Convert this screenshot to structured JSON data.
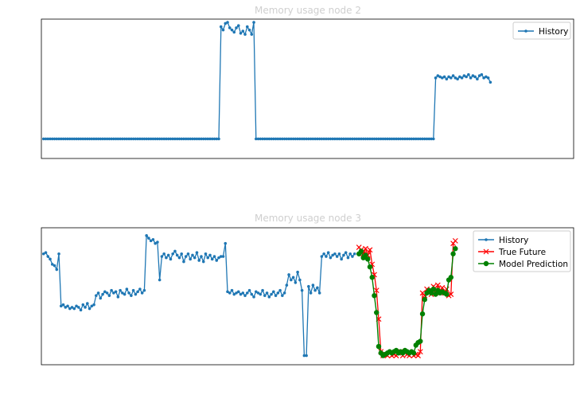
{
  "colors": {
    "history": "#1f77b4",
    "true_future": "#ff0000",
    "prediction": "#008000",
    "axes": "#000000",
    "faded_text": "#d6d6d6"
  },
  "chart_data": [
    {
      "type": "line",
      "title": "Memory usage node 2",
      "xlabel": "",
      "ylabel": "",
      "xlim": [
        -1,
        242
      ],
      "ylim": [
        -0.18,
        1.1
      ],
      "legend": {
        "placement": "top-right",
        "entries": [
          "History"
        ]
      },
      "grid": false,
      "series": [
        {
          "name": "History",
          "marker": "dot",
          "segments": [
            {
              "x_start": 0,
              "x_end": 80,
              "value": 0.0
            },
            {
              "x_start": 81,
              "x_end": 96,
              "values": [
                1.03,
                1.0,
                1.06,
                1.07,
                1.02,
                1.0,
                0.98,
                1.02,
                1.04,
                0.97,
                0.99,
                0.96,
                1.03,
                1.0,
                0.96,
                1.07
              ]
            },
            {
              "x_start": 97,
              "x_end": 178,
              "value": 0.0
            },
            {
              "x_start": 179,
              "x_end": 204,
              "values": [
                0.56,
                0.58,
                0.57,
                0.56,
                0.57,
                0.55,
                0.57,
                0.56,
                0.58,
                0.56,
                0.55,
                0.57,
                0.56,
                0.58,
                0.57,
                0.59,
                0.56,
                0.58,
                0.57,
                0.55,
                0.58,
                0.59,
                0.56,
                0.57,
                0.56,
                0.52
              ]
            }
          ]
        }
      ]
    },
    {
      "type": "line",
      "title": "Memory usage node 3",
      "xlabel": "",
      "ylabel": "",
      "xlim": [
        -1,
        242
      ],
      "ylim": [
        -0.05,
        1.0
      ],
      "legend": {
        "placement": "top-right",
        "entries": [
          "History",
          "True Future",
          "Model Prediction"
        ]
      },
      "grid": false,
      "series": [
        {
          "name": "History",
          "marker": "dot",
          "values": [
            0.8,
            0.81,
            0.78,
            0.76,
            0.72,
            0.71,
            0.68,
            0.8,
            0.4,
            0.41,
            0.39,
            0.4,
            0.38,
            0.39,
            0.38,
            0.4,
            0.39,
            0.37,
            0.41,
            0.39,
            0.42,
            0.38,
            0.4,
            0.41,
            0.48,
            0.5,
            0.46,
            0.49,
            0.51,
            0.5,
            0.48,
            0.52,
            0.5,
            0.51,
            0.47,
            0.52,
            0.5,
            0.49,
            0.53,
            0.5,
            0.48,
            0.52,
            0.49,
            0.51,
            0.53,
            0.5,
            0.52,
            0.94,
            0.92,
            0.9,
            0.91,
            0.88,
            0.89,
            0.6,
            0.78,
            0.8,
            0.77,
            0.79,
            0.76,
            0.8,
            0.82,
            0.79,
            0.77,
            0.8,
            0.74,
            0.78,
            0.8,
            0.76,
            0.79,
            0.77,
            0.81,
            0.75,
            0.78,
            0.74,
            0.8,
            0.77,
            0.79,
            0.76,
            0.78,
            0.75,
            0.77,
            0.78,
            0.78,
            0.88,
            0.51,
            0.5,
            0.52,
            0.49,
            0.5,
            0.51,
            0.49,
            0.5,
            0.48,
            0.5,
            0.52,
            0.49,
            0.47,
            0.51,
            0.5,
            0.49,
            0.52,
            0.48,
            0.5,
            0.47,
            0.49,
            0.51,
            0.48,
            0.5,
            0.52,
            0.48,
            0.5,
            0.56,
            0.64,
            0.6,
            0.62,
            0.58,
            0.66,
            0.6,
            0.52,
            0.02,
            0.02,
            0.55,
            0.5,
            0.56,
            0.52,
            0.54,
            0.5,
            0.78,
            0.8,
            0.78,
            0.81,
            0.77,
            0.79,
            0.8,
            0.78,
            0.8,
            0.76,
            0.79,
            0.81,
            0.77,
            0.8,
            0.78,
            0.8
          ]
        },
        {
          "name": "True Future",
          "marker": "x",
          "x_start": 144,
          "values": [
            0.85,
            0.83,
            0.8,
            0.84,
            0.79,
            0.83,
            0.72,
            0.64,
            0.52,
            0.3,
            0.05,
            0.02,
            0.03,
            0.02,
            0.04,
            0.02,
            0.03,
            0.02,
            0.04,
            0.05,
            0.02,
            0.04,
            0.03,
            0.02,
            0.04,
            0.02,
            0.03,
            0.02,
            0.05,
            0.5,
            0.48,
            0.53,
            0.51,
            0.49,
            0.55,
            0.5,
            0.56,
            0.52,
            0.54,
            0.5,
            0.53,
            0.48,
            0.49,
            0.88,
            0.9
          ]
        },
        {
          "name": "Model Prediction",
          "marker": "o",
          "x_start": 144,
          "values": [
            0.8,
            0.82,
            0.77,
            0.79,
            0.76,
            0.7,
            0.62,
            0.48,
            0.35,
            0.09,
            0.04,
            0.02,
            0.03,
            0.04,
            0.05,
            0.04,
            0.05,
            0.06,
            0.04,
            0.05,
            0.04,
            0.06,
            0.05,
            0.04,
            0.05,
            0.04,
            0.1,
            0.12,
            0.13,
            0.34,
            0.45,
            0.5,
            0.52,
            0.5,
            0.53,
            0.49,
            0.52,
            0.5,
            0.51,
            0.5,
            0.49,
            0.6,
            0.62,
            0.8,
            0.84
          ]
        }
      ]
    }
  ]
}
